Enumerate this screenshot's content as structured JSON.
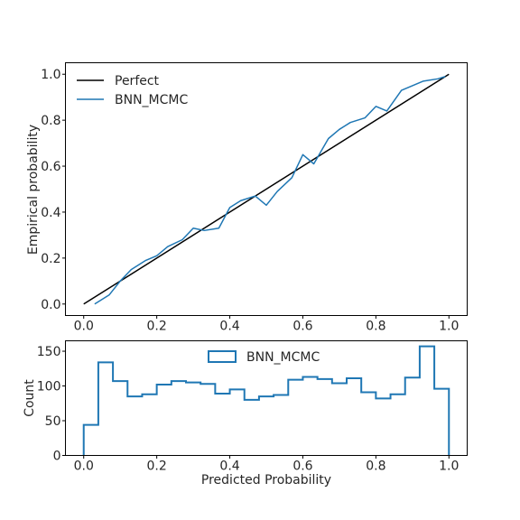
{
  "chart_data": [
    {
      "type": "line",
      "title": "",
      "xlabel": "",
      "ylabel": "Empirical probability",
      "xlim": [
        -0.05,
        1.05
      ],
      "ylim": [
        -0.05,
        1.05
      ],
      "xticks": [
        0.0,
        0.2,
        0.4,
        0.6,
        0.8,
        1.0
      ],
      "yticks": [
        0.0,
        0.2,
        0.4,
        0.6,
        0.8,
        1.0
      ],
      "xtick_labels": [
        "0.0",
        "0.2",
        "0.4",
        "0.6",
        "0.8",
        "1.0"
      ],
      "ytick_labels": [
        "0.0",
        "0.2",
        "0.4",
        "0.6",
        "0.8",
        "1.0"
      ],
      "grid": false,
      "legend_position": "top-left",
      "series": [
        {
          "name": "Perfect",
          "color": "#000000",
          "x": [
            0.0,
            1.0
          ],
          "y": [
            0.0,
            1.0
          ]
        },
        {
          "name": "BNN_MCMC",
          "color": "#1f77b4",
          "x": [
            0.03,
            0.07,
            0.1,
            0.13,
            0.17,
            0.2,
            0.23,
            0.27,
            0.3,
            0.33,
            0.37,
            0.4,
            0.43,
            0.47,
            0.5,
            0.53,
            0.57,
            0.6,
            0.63,
            0.67,
            0.7,
            0.73,
            0.77,
            0.8,
            0.83,
            0.87,
            0.9,
            0.93,
            0.97,
            0.99
          ],
          "y": [
            0.0,
            0.04,
            0.1,
            0.15,
            0.19,
            0.21,
            0.25,
            0.28,
            0.33,
            0.32,
            0.33,
            0.42,
            0.45,
            0.47,
            0.43,
            0.49,
            0.55,
            0.65,
            0.61,
            0.72,
            0.76,
            0.79,
            0.81,
            0.86,
            0.84,
            0.93,
            0.95,
            0.97,
            0.98,
            0.99
          ]
        }
      ]
    },
    {
      "type": "bar",
      "style": "step histogram",
      "title": "",
      "xlabel": "Predicted Probability",
      "ylabel": "Count",
      "xlim": [
        -0.05,
        1.05
      ],
      "ylim": [
        0,
        165
      ],
      "xticks": [
        0.0,
        0.2,
        0.4,
        0.6,
        0.8,
        1.0
      ],
      "yticks": [
        0,
        50,
        100,
        150
      ],
      "xtick_labels": [
        "0.0",
        "0.2",
        "0.4",
        "0.6",
        "0.8",
        "1.0"
      ],
      "ytick_labels": [
        "0",
        "50",
        "100",
        "150"
      ],
      "grid": false,
      "legend_position": "top-center",
      "bin_edges": [
        0.0,
        0.04,
        0.08,
        0.12,
        0.16,
        0.2,
        0.24,
        0.28,
        0.32,
        0.36,
        0.4,
        0.44,
        0.48,
        0.52,
        0.56,
        0.6,
        0.64,
        0.68,
        0.72,
        0.76,
        0.8,
        0.84,
        0.88,
        0.92,
        0.96,
        1.0
      ],
      "series": [
        {
          "name": "BNN_MCMC",
          "color": "#1f77b4",
          "values": [
            44,
            134,
            107,
            85,
            88,
            102,
            107,
            105,
            103,
            89,
            95,
            80,
            85,
            87,
            109,
            113,
            110,
            104,
            111,
            91,
            82,
            88,
            112,
            157,
            96
          ]
        }
      ]
    }
  ]
}
